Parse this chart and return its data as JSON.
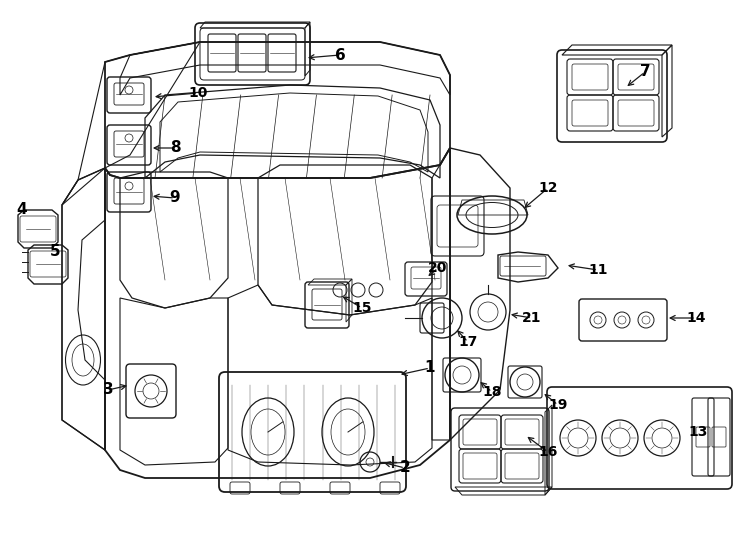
{
  "bg": "#ffffff",
  "lc": "#1a1a1a",
  "tc": "#000000",
  "fw": 7.34,
  "fh": 5.4,
  "dpi": 100,
  "labels": [
    [
      "1",
      430,
      368,
      398,
      365
    ],
    [
      "2",
      405,
      468,
      382,
      462
    ],
    [
      "3",
      108,
      388,
      132,
      385
    ],
    [
      "4",
      22,
      210,
      22,
      230
    ],
    [
      "5",
      55,
      252,
      55,
      252
    ],
    [
      "6",
      340,
      55,
      285,
      58
    ],
    [
      "7",
      640,
      72,
      622,
      88
    ],
    [
      "8",
      175,
      148,
      150,
      148
    ],
    [
      "9",
      175,
      195,
      150,
      195
    ],
    [
      "10",
      195,
      92,
      152,
      98
    ],
    [
      "11",
      595,
      270,
      568,
      265
    ],
    [
      "12",
      545,
      188,
      520,
      210
    ],
    [
      "13",
      695,
      430,
      695,
      430
    ],
    [
      "14",
      695,
      318,
      665,
      318
    ],
    [
      "15",
      360,
      308,
      338,
      295
    ],
    [
      "16",
      543,
      450,
      520,
      432
    ],
    [
      "17",
      465,
      342,
      452,
      328
    ],
    [
      "18",
      490,
      390,
      475,
      378
    ],
    [
      "19",
      555,
      402,
      540,
      390
    ],
    [
      "20",
      435,
      268,
      435,
      280
    ],
    [
      "21",
      530,
      318,
      508,
      316
    ]
  ]
}
